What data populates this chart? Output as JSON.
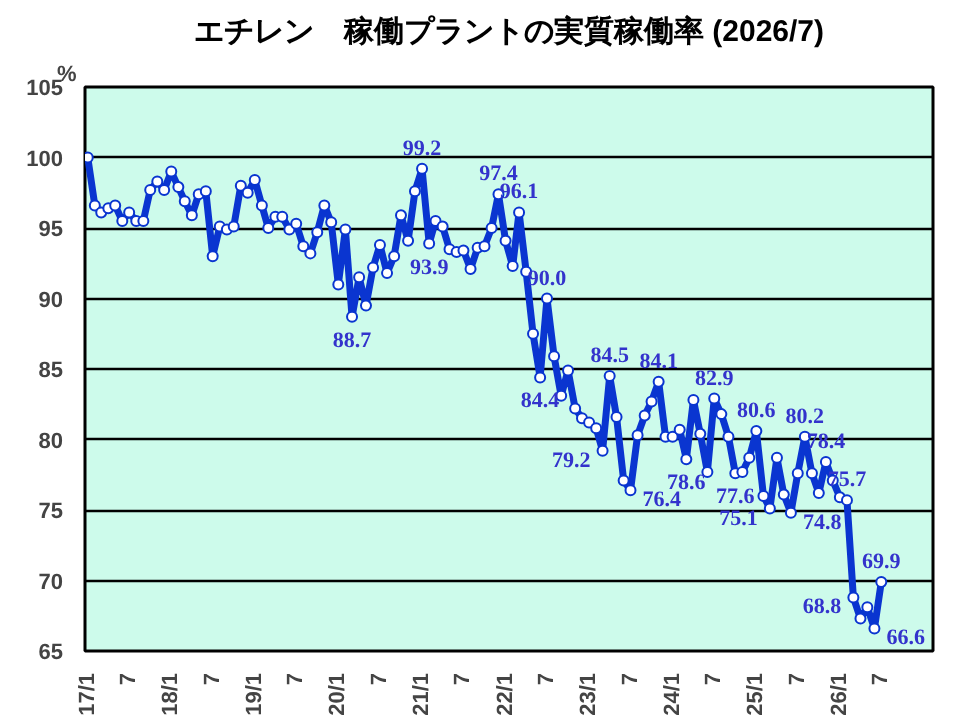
{
  "chart_data": {
    "type": "line",
    "title": "エチレン　稼働プラントの実質稼働率 (2026/7)",
    "ylabel": "%",
    "x": [
      "2017-01",
      "2017-02",
      "2017-03",
      "2017-04",
      "2017-05",
      "2017-06",
      "2017-07",
      "2017-08",
      "2017-09",
      "2017-10",
      "2017-11",
      "2017-12",
      "2018-01",
      "2018-02",
      "2018-03",
      "2018-04",
      "2018-05",
      "2018-06",
      "2018-07",
      "2018-08",
      "2018-09",
      "2018-10",
      "2018-11",
      "2018-12",
      "2019-01",
      "2019-02",
      "2019-03",
      "2019-04",
      "2019-05",
      "2019-06",
      "2019-07",
      "2019-08",
      "2019-09",
      "2019-10",
      "2019-11",
      "2019-12",
      "2020-01",
      "2020-02",
      "2020-03",
      "2020-04",
      "2020-05",
      "2020-06",
      "2020-07",
      "2020-08",
      "2020-09",
      "2020-10",
      "2020-11",
      "2020-12",
      "2021-01",
      "2021-02",
      "2021-03",
      "2021-04",
      "2021-05",
      "2021-06",
      "2021-07",
      "2021-08",
      "2021-09",
      "2021-10",
      "2021-11",
      "2021-12",
      "2022-01",
      "2022-02",
      "2022-03",
      "2022-04",
      "2022-05",
      "2022-06",
      "2022-07",
      "2022-08",
      "2022-09",
      "2022-10",
      "2022-11",
      "2022-12",
      "2023-01",
      "2023-02",
      "2023-03",
      "2023-04",
      "2023-05",
      "2023-06",
      "2023-07",
      "2023-08",
      "2023-09",
      "2023-10",
      "2023-11",
      "2023-12",
      "2024-01",
      "2024-02",
      "2024-03",
      "2024-04",
      "2024-05",
      "2024-06",
      "2024-07",
      "2024-08",
      "2024-09",
      "2024-10",
      "2024-11",
      "2024-12",
      "2025-01",
      "2025-02",
      "2025-03",
      "2025-04",
      "2025-05",
      "2025-06",
      "2025-07",
      "2025-08",
      "2025-09",
      "2025-10",
      "2025-11",
      "2025-12",
      "2026-01",
      "2026-02",
      "2026-03",
      "2026-04",
      "2026-05",
      "2026-06",
      "2026-07"
    ],
    "series": [
      {
        "color": "#0a35d0",
        "values": [
          100.0,
          96.6,
          96.1,
          96.4,
          96.6,
          95.5,
          96.1,
          95.5,
          95.5,
          97.7,
          98.3,
          97.7,
          99.0,
          97.9,
          96.9,
          95.9,
          97.4,
          97.6,
          93.0,
          95.1,
          94.9,
          95.1,
          98.0,
          97.5,
          98.4,
          96.6,
          95.0,
          95.8,
          95.8,
          94.9,
          95.3,
          93.7,
          93.2,
          94.7,
          96.6,
          95.4,
          91.0,
          94.9,
          88.7,
          91.5,
          89.5,
          92.2,
          93.8,
          91.8,
          93.0,
          95.9,
          94.1,
          97.6,
          99.2,
          93.9,
          95.5,
          95.1,
          93.5,
          93.3,
          93.4,
          92.1,
          93.6,
          93.7,
          95.0,
          97.4,
          94.1,
          92.3,
          96.1,
          91.9,
          87.5,
          84.4,
          90.0,
          85.9,
          83.1,
          84.9,
          82.2,
          81.5,
          81.2,
          80.8,
          79.2,
          84.5,
          81.6,
          77.1,
          76.4,
          80.3,
          81.7,
          82.7,
          84.1,
          80.2,
          80.2,
          80.7,
          78.6,
          82.8,
          80.4,
          77.7,
          82.9,
          81.8,
          80.2,
          77.6,
          77.7,
          78.7,
          80.6,
          76.0,
          75.1,
          78.7,
          76.1,
          74.8,
          77.6,
          80.2,
          77.6,
          76.2,
          78.4,
          77.1,
          75.9,
          75.7,
          68.8,
          67.3,
          68.1,
          66.6,
          69.9
        ],
        "value_labels": [
          null,
          null,
          null,
          null,
          null,
          null,
          null,
          null,
          null,
          null,
          null,
          null,
          null,
          null,
          null,
          null,
          null,
          null,
          null,
          null,
          null,
          null,
          null,
          null,
          null,
          null,
          null,
          null,
          null,
          null,
          null,
          null,
          null,
          null,
          null,
          null,
          null,
          null,
          "88.7",
          null,
          null,
          null,
          null,
          null,
          null,
          null,
          null,
          null,
          "99.2",
          "93.9",
          null,
          null,
          null,
          null,
          null,
          null,
          null,
          null,
          null,
          "97.4",
          null,
          null,
          "96.1",
          null,
          null,
          "84.4",
          "90.0",
          null,
          null,
          null,
          null,
          null,
          null,
          null,
          "79.2",
          "84.5",
          null,
          null,
          "76.4",
          null,
          null,
          null,
          "84.1",
          null,
          null,
          null,
          "78.6",
          null,
          null,
          null,
          "82.9",
          null,
          null,
          "77.6",
          null,
          null,
          "80.6",
          null,
          "75.1",
          null,
          null,
          "74.8",
          null,
          "80.2",
          null,
          null,
          "78.4",
          null,
          null,
          "75.7",
          "68.8",
          null,
          null,
          "66.6",
          "69.9"
        ]
      }
    ],
    "xlim": [
      "2016-12-20",
      "2027-02-12"
    ],
    "xticks": [
      {
        "value": "2017-01",
        "label": "17/1"
      },
      {
        "value": "2017-07",
        "label": "7"
      },
      {
        "value": "2018-01",
        "label": "18/1"
      },
      {
        "value": "2018-07",
        "label": "7"
      },
      {
        "value": "2019-01",
        "label": "19/1"
      },
      {
        "value": "2019-07",
        "label": "7"
      },
      {
        "value": "2020-01",
        "label": "20/1"
      },
      {
        "value": "2020-07",
        "label": "7"
      },
      {
        "value": "2021-01",
        "label": "21/1"
      },
      {
        "value": "2021-07",
        "label": "7"
      },
      {
        "value": "2022-01",
        "label": "22/1"
      },
      {
        "value": "2022-07",
        "label": "7"
      },
      {
        "value": "2023-01",
        "label": "23/1"
      },
      {
        "value": "2023-07",
        "label": "7"
      },
      {
        "value": "2024-01",
        "label": "24/1"
      },
      {
        "value": "2024-07",
        "label": "7"
      },
      {
        "value": "2025-01",
        "label": "25/1"
      },
      {
        "value": "2025-07",
        "label": "7"
      },
      {
        "value": "2026-01",
        "label": "26/1"
      },
      {
        "value": "2026-07",
        "label": "7"
      }
    ],
    "ylim": [
      65,
      105
    ],
    "yticks": [
      65,
      70,
      75,
      80,
      85,
      90,
      95,
      100,
      105
    ],
    "grid": "y",
    "marker": "circle",
    "line_style": "solid"
  }
}
